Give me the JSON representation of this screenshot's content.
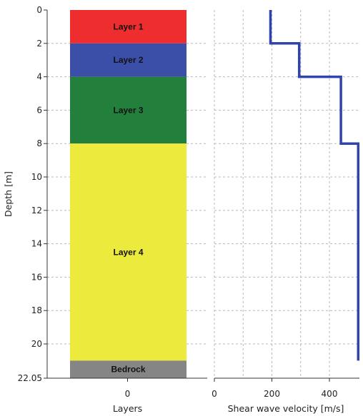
{
  "chart_data": [
    {
      "type": "bar",
      "title": "",
      "xlabel": "Layers",
      "ylabel": "Depth [m]",
      "x_ticks": [
        "0"
      ],
      "y_ticks": [
        "0",
        "2",
        "4",
        "6",
        "8",
        "10",
        "12",
        "14",
        "16",
        "18",
        "20",
        "22.05"
      ],
      "ylim": [
        0,
        22.05
      ],
      "y_inverted": true,
      "layers": [
        {
          "name": "Layer 1",
          "top": 0,
          "bottom": 2,
          "color": "#ee2e2e"
        },
        {
          "name": "Layer 2",
          "top": 2,
          "bottom": 4,
          "color": "#3c4fa8"
        },
        {
          "name": "Layer 3",
          "top": 4,
          "bottom": 8,
          "color": "#23803c"
        },
        {
          "name": "Layer 4",
          "top": 8,
          "bottom": 21,
          "color": "#ecea3c"
        },
        {
          "name": "Bedrock",
          "top": 21,
          "bottom": 22.05,
          "color": "#858585"
        }
      ]
    },
    {
      "type": "line",
      "title": "",
      "xlabel": "Shear wave velocity [m/s]",
      "ylabel": "",
      "x_ticks": [
        "0",
        "200",
        "400"
      ],
      "xlim": [
        0,
        500
      ],
      "ylim": [
        0,
        22.05
      ],
      "y_inverted": true,
      "grid": true,
      "series": [
        {
          "color": "#2f44ad",
          "profile": [
            {
              "depth_top": 0,
              "depth_bottom": 2,
              "velocity": 195
            },
            {
              "depth_top": 2,
              "depth_bottom": 4,
              "velocity": 295
            },
            {
              "depth_top": 4,
              "depth_bottom": 8,
              "velocity": 440
            },
            {
              "depth_top": 8,
              "depth_bottom": 21,
              "velocity": 500
            }
          ]
        }
      ]
    }
  ]
}
